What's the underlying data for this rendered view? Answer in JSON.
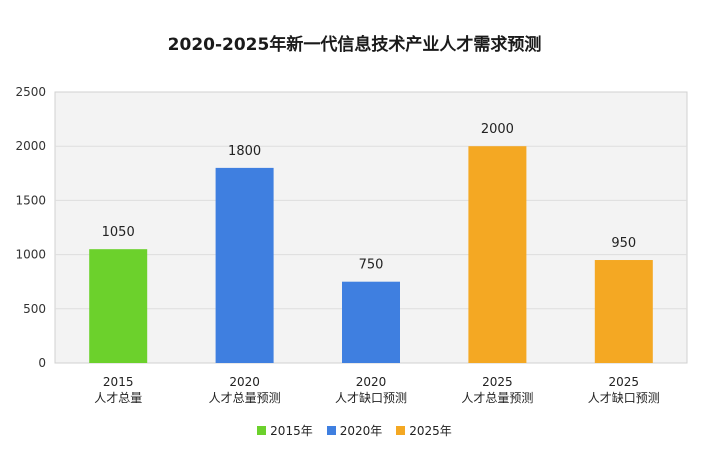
{
  "chart_data": {
    "type": "bar",
    "title": "2020-2025年新一代信息技术产业人才需求预测",
    "xlabel": "",
    "ylabel": "",
    "ylim": [
      0,
      2500
    ],
    "yticks": [
      "0",
      "500",
      "1000",
      "1500",
      "2000",
      "2500"
    ],
    "grid": true,
    "legend_position": "bottom",
    "categories": [
      {
        "year": "2015",
        "desc": "人才总量"
      },
      {
        "year": "2020",
        "desc": "人才总量预测"
      },
      {
        "year": "2020",
        "desc": "人才缺口预测"
      },
      {
        "year": "2025",
        "desc": "人才总量预测"
      },
      {
        "year": "2025",
        "desc": "人才缺口预测"
      }
    ],
    "values": [
      1050,
      1800,
      750,
      2000,
      950
    ],
    "value_labels": [
      "1050",
      "1800",
      "750",
      "2000",
      "950"
    ],
    "bar_series": [
      0,
      1,
      1,
      2,
      2
    ],
    "series": [
      {
        "name": "2015年",
        "color": "#6cd12c"
      },
      {
        "name": "2020年",
        "color": "#3f7fe0"
      },
      {
        "name": "2025年",
        "color": "#f4a823"
      }
    ]
  }
}
